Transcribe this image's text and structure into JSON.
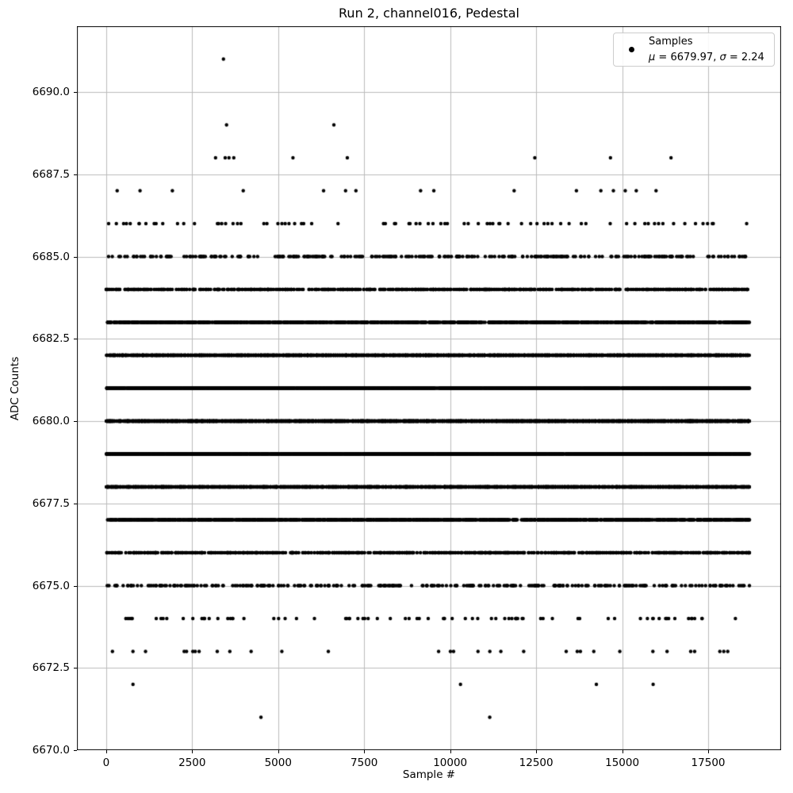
{
  "window": {
    "title": "Run 2, channel016, Pedestal"
  },
  "colors": {
    "marker": "#000000",
    "grid": "#bbbbbb",
    "spine": "#000000",
    "legend_border": "#cccccc",
    "background": "#ffffff"
  },
  "legend": {
    "label": "Samples",
    "mu_symbol": "μ",
    "mu_value_text": " = 6679.97, ",
    "sigma_symbol": "σ",
    "sigma_value_text": " = 2.24"
  },
  "chart_data": {
    "type": "scatter",
    "title": "Run 2, channel016, Pedestal",
    "xlabel": "Sample #",
    "ylabel": "ADC Counts",
    "xlim": [
      -850,
      19620
    ],
    "ylim": [
      6670.0,
      6692.0
    ],
    "x_ticks": [
      0,
      2500,
      5000,
      7500,
      10000,
      12500,
      15000,
      17500
    ],
    "y_ticks": [
      6670.0,
      6672.5,
      6675.0,
      6677.5,
      6680.0,
      6682.5,
      6685.0,
      6687.5,
      6690.0
    ],
    "grid": true,
    "legend_position": "upper right",
    "series_name": "Samples",
    "mean": 6679.97,
    "sigma": 2.24,
    "n_samples": 18700,
    "marker": "point",
    "marker_radius_px": 2.2,
    "adc_levels": [
      {
        "adc": 6691,
        "samples": [
          3410
        ]
      },
      {
        "adc": 6689,
        "samples": [
          3500,
          6620
        ]
      },
      {
        "adc": 6688,
        "samples": [
          3180,
          3460,
          3570,
          3710,
          5430,
          7010,
          12460,
          14660,
          16420
        ]
      },
      {
        "adc": 6687,
        "samples": [
          320,
          985,
          1925,
          3985,
          6320,
          6960,
          7260,
          9140,
          9525,
          11860,
          13670,
          14380,
          14745,
          15090,
          15410,
          15985
        ]
      },
      {
        "adc": 6686,
        "count": 80
      },
      {
        "adc": 6685,
        "count": 280
      },
      {
        "adc": 6684,
        "count": 670
      },
      {
        "adc": 6683,
        "count": 1350
      },
      {
        "adc": 6682,
        "count": 2210
      },
      {
        "adc": 6681,
        "count": 2990
      },
      {
        "adc": 6680,
        "count": 3310
      },
      {
        "adc": 6679,
        "count": 3020
      },
      {
        "adc": 6678,
        "count": 2260
      },
      {
        "adc": 6677,
        "count": 1400
      },
      {
        "adc": 6676,
        "count": 700
      },
      {
        "adc": 6675,
        "count": 290
      },
      {
        "adc": 6674,
        "count": 85
      },
      {
        "adc": 6673,
        "samples": [
          183,
          779,
          1145,
          2267,
          2336,
          2519,
          2588,
          2702,
          3229,
          3595,
          4214,
          5107,
          6458,
          9664,
          10007,
          10099,
          10809,
          11153,
          11473,
          12137,
          13373,
          13694,
          13786,
          14175,
          14931,
          15893,
          16305,
          16992,
          17106,
          17839,
          17954,
          18069
        ]
      },
      {
        "adc": 6672,
        "samples": [
          780,
          10300,
          14250,
          15900
        ]
      },
      {
        "adc": 6671,
        "samples": [
          4500,
          11150
        ]
      }
    ]
  }
}
